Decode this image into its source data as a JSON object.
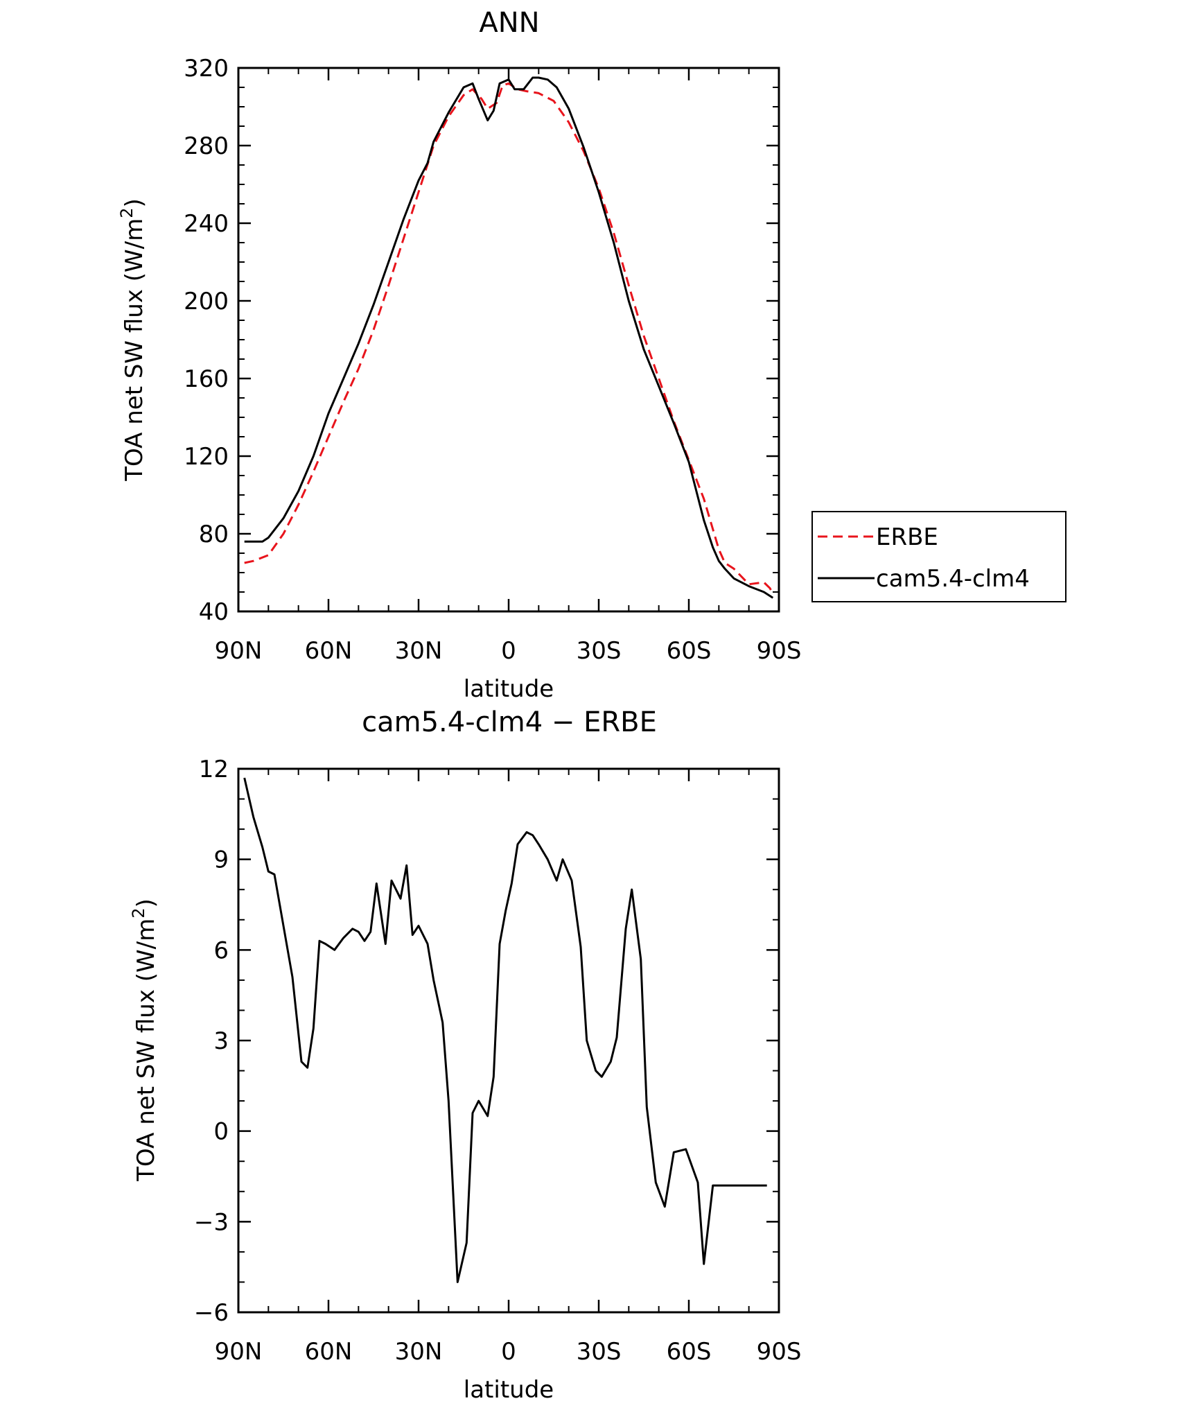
{
  "chart_data": [
    {
      "type": "line",
      "title": "ANN",
      "xlabel": "latitude",
      "ylabel": "TOA net SW flux (W/m",
      "ylabel_sup": "2",
      "ylabel_close": ")",
      "xlim": [
        90,
        -90
      ],
      "ylim": [
        40,
        320
      ],
      "xticks": [
        90,
        60,
        30,
        0,
        -30,
        -60,
        -90
      ],
      "xtick_labels": [
        "90N",
        "60N",
        "30N",
        "0",
        "30S",
        "60S",
        "90S"
      ],
      "yticks": [
        40,
        80,
        120,
        160,
        200,
        240,
        280,
        320
      ],
      "ytick_labels": [
        "40",
        "80",
        "120",
        "160",
        "200",
        "240",
        "280",
        "320"
      ],
      "legend_position": "right",
      "series": [
        {
          "name": "ERBE",
          "color": "#e8141c",
          "dash": "dashed",
          "x": [
            88,
            85,
            80,
            75,
            70,
            65,
            60,
            55,
            50,
            45,
            40,
            35,
            30,
            25,
            20,
            15,
            12,
            9,
            7,
            4,
            2,
            0,
            -3,
            -6,
            -10,
            -15,
            -20,
            -25,
            -30,
            -35,
            -40,
            -45,
            -50,
            -55,
            -60,
            -65,
            -70,
            -72,
            -75,
            -80,
            -85,
            -87,
            -88
          ],
          "y": [
            65,
            66,
            69,
            80,
            95,
            112,
            130,
            148,
            165,
            185,
            208,
            232,
            256,
            280,
            295,
            306,
            309,
            304,
            299,
            302,
            311,
            312,
            309,
            308,
            307,
            303,
            292,
            277,
            258,
            235,
            208,
            182,
            160,
            138,
            118,
            98,
            72,
            65,
            62,
            54,
            55,
            52,
            49
          ]
        },
        {
          "name": "cam5.4-clm4",
          "color": "#000000",
          "dash": "solid",
          "x": [
            88,
            85,
            82,
            80,
            75,
            70,
            65,
            60,
            55,
            50,
            45,
            40,
            35,
            30,
            27,
            25,
            20,
            15,
            12,
            10,
            7,
            5,
            3,
            0,
            -2,
            -5,
            -8,
            -10,
            -13,
            -16,
            -20,
            -25,
            -30,
            -35,
            -40,
            -45,
            -50,
            -55,
            -60,
            -62,
            -65,
            -68,
            -70,
            -72,
            -75,
            -80,
            -85,
            -88
          ],
          "y": [
            76,
            76,
            76,
            78,
            88,
            102,
            120,
            142,
            160,
            178,
            198,
            220,
            242,
            262,
            271,
            282,
            297,
            310,
            312,
            304,
            293,
            298,
            312,
            314,
            309,
            309,
            315,
            315,
            314,
            310,
            299,
            279,
            256,
            230,
            200,
            175,
            156,
            137,
            117,
            105,
            87,
            73,
            66,
            62,
            57,
            53,
            50,
            47
          ]
        }
      ]
    },
    {
      "type": "line",
      "title": "cam5.4-clm4 − ERBE",
      "xlabel": "latitude",
      "ylabel": "TOA net SW flux (W/m",
      "ylabel_sup": "2",
      "ylabel_close": ")",
      "xlim": [
        90,
        -90
      ],
      "ylim": [
        -6,
        12
      ],
      "xticks": [
        90,
        60,
        30,
        0,
        -30,
        -60,
        -90
      ],
      "xtick_labels": [
        "90N",
        "60N",
        "30N",
        "0",
        "30S",
        "60S",
        "90S"
      ],
      "yticks": [
        -6,
        -3,
        0,
        3,
        6,
        9,
        12
      ],
      "ytick_labels": [
        "−6",
        "−3",
        "0",
        "3",
        "6",
        "9",
        "12"
      ],
      "series": [
        {
          "color": "#000000",
          "dash": "solid",
          "x": [
            88,
            85,
            82,
            80,
            78,
            75,
            72,
            69,
            67,
            65,
            63,
            61,
            58,
            55,
            52,
            50,
            48,
            46,
            44,
            41,
            39,
            36,
            34,
            32,
            30,
            27,
            25,
            22,
            20,
            17,
            14,
            12,
            10,
            7,
            5,
            3,
            1,
            -1,
            -3,
            -6,
            -8,
            -10,
            -13,
            -16,
            -18,
            -21,
            -24,
            -26,
            -29,
            -31,
            -34,
            -36,
            -39,
            -41,
            -44,
            -46,
            -49,
            -52,
            -55,
            -59,
            -63,
            -65,
            -68,
            -70,
            -72,
            -75,
            -77,
            -79,
            -82,
            -84,
            -86
          ],
          "y": [
            11.7,
            10.4,
            9.4,
            8.6,
            8.5,
            6.8,
            5.1,
            2.3,
            2.1,
            3.4,
            6.3,
            6.2,
            6.0,
            6.4,
            6.7,
            6.6,
            6.3,
            6.6,
            8.2,
            6.2,
            8.3,
            7.7,
            8.8,
            6.5,
            6.8,
            6.2,
            5.0,
            3.6,
            1.0,
            -5.0,
            -3.7,
            0.6,
            1.0,
            0.5,
            1.8,
            6.2,
            7.3,
            8.2,
            9.5,
            9.9,
            9.8,
            9.5,
            9.0,
            8.3,
            9.0,
            8.3,
            6.1,
            3.0,
            2.0,
            1.8,
            2.3,
            3.1,
            6.7,
            8.0,
            5.7,
            0.8,
            -1.7,
            -2.5,
            -0.7,
            -0.6,
            -1.7,
            -4.4,
            -1.8,
            -1.8,
            -1.8,
            -1.8,
            -1.8,
            -1.8,
            -1.8,
            -1.8,
            -1.8
          ]
        }
      ]
    }
  ]
}
